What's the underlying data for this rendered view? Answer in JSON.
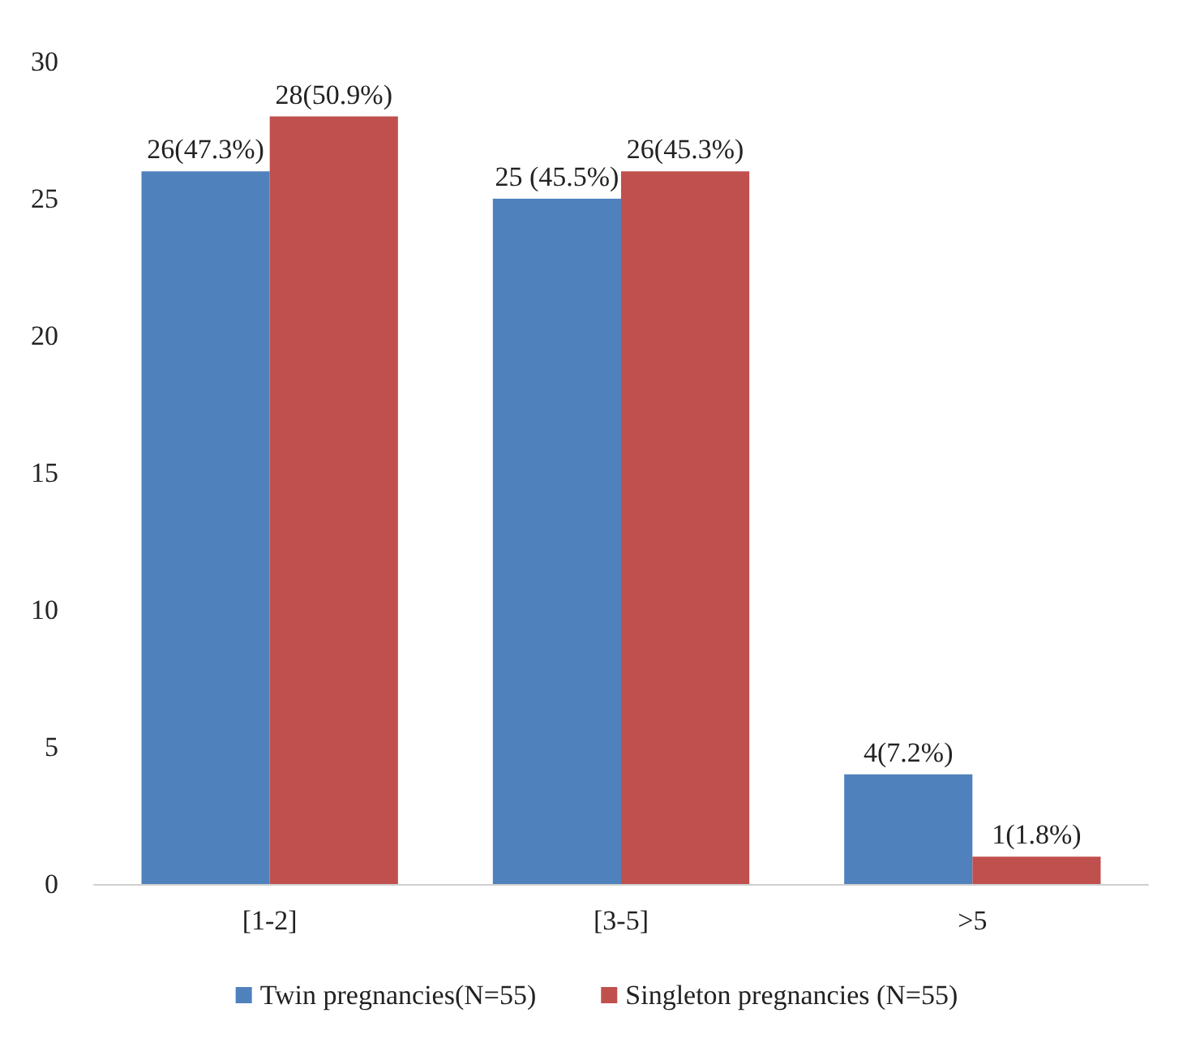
{
  "chart_data": {
    "type": "bar",
    "categories": [
      "[1-2]",
      "[3-5]",
      ">5"
    ],
    "series": [
      {
        "name": "Twin pregnancies(N=55)",
        "color": "#4f81bd",
        "values": [
          26,
          25,
          4
        ],
        "value_labels": [
          "26(47.3%)",
          "25 (45.5%)",
          "4(7.2%)"
        ]
      },
      {
        "name": "Singleton pregnancies (N=55)",
        "color": "#c0504d",
        "values": [
          28,
          26,
          1
        ],
        "value_labels": [
          "28(50.9%)",
          "26(45.3%)",
          "1(1.8%)"
        ]
      }
    ],
    "ylim": [
      0,
      30
    ],
    "yticks": [
      0,
      5,
      10,
      15,
      20,
      25,
      30
    ],
    "grid": false,
    "legend": "bottom"
  }
}
